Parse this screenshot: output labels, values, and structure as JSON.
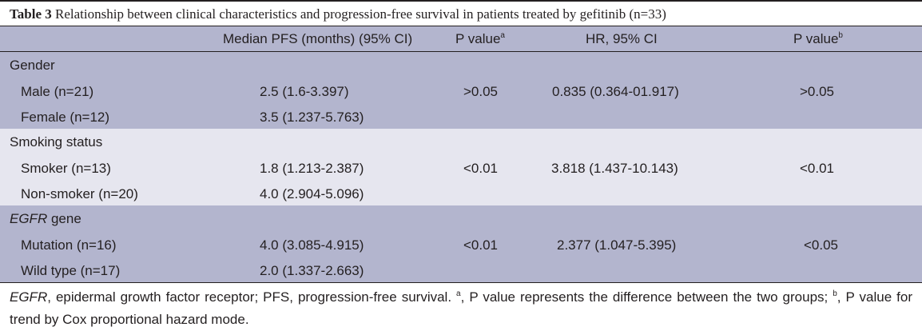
{
  "caption": {
    "lead": "Table 3",
    "text": " Relationship between clinical characteristics and progression-free survival in patients treated by gefitinib (n=33)"
  },
  "header": {
    "col_pfs": "Median PFS (months) (95% CI)",
    "col_p1": "P value",
    "col_p1_sup": "a",
    "col_hr": "HR, 95% CI",
    "col_p2": "P value",
    "col_p2_sup": "b"
  },
  "groups": [
    {
      "title": "Gender",
      "rows": [
        {
          "name": "Male (n=21)",
          "pfs": "2.5 (1.6-3.397)",
          "p1": ">0.05",
          "hr": "0.835 (0.364-01.917)",
          "p2": ">0.05"
        },
        {
          "name": "Female (n=12)",
          "pfs": "3.5 (1.237-5.763)",
          "p1": "",
          "hr": "",
          "p2": ""
        }
      ]
    },
    {
      "title": "Smoking status",
      "rows": [
        {
          "name": "Smoker (n=13)",
          "pfs": "1.8 (1.213-2.387)",
          "p1": "<0.01",
          "hr": "3.818 (1.437-10.143)",
          "p2": "<0.01"
        },
        {
          "name": "Non-smoker (n=20)",
          "pfs": "4.0 (2.904-5.096)",
          "p1": "",
          "hr": "",
          "p2": ""
        }
      ]
    },
    {
      "title_italic": "EGFR",
      "title_rest": " gene",
      "rows": [
        {
          "name": "Mutation (n=16)",
          "pfs": "4.0 (3.085-4.915)",
          "p1": "<0.01",
          "hr": "2.377 (1.047-5.395)",
          "p2": "<0.05"
        },
        {
          "name": "Wild type (n=17)",
          "pfs": "2.0 (1.337-2.663)",
          "p1": "",
          "hr": "",
          "p2": ""
        }
      ]
    }
  ],
  "footnote": {
    "abbr_italic": "EGFR",
    "abbr_rest": ", epidermal growth factor receptor; PFS, progression-free survival. ",
    "a_sup": "a",
    "a_text": ", P value represents the difference between the two groups; ",
    "b_sup": "b",
    "b_text": ", P value for trend by Cox proportional hazard mode."
  },
  "colors": {
    "band_dark": "#b3b5ce",
    "band_light": "#e6e6ef",
    "rule": "#231f20"
  }
}
